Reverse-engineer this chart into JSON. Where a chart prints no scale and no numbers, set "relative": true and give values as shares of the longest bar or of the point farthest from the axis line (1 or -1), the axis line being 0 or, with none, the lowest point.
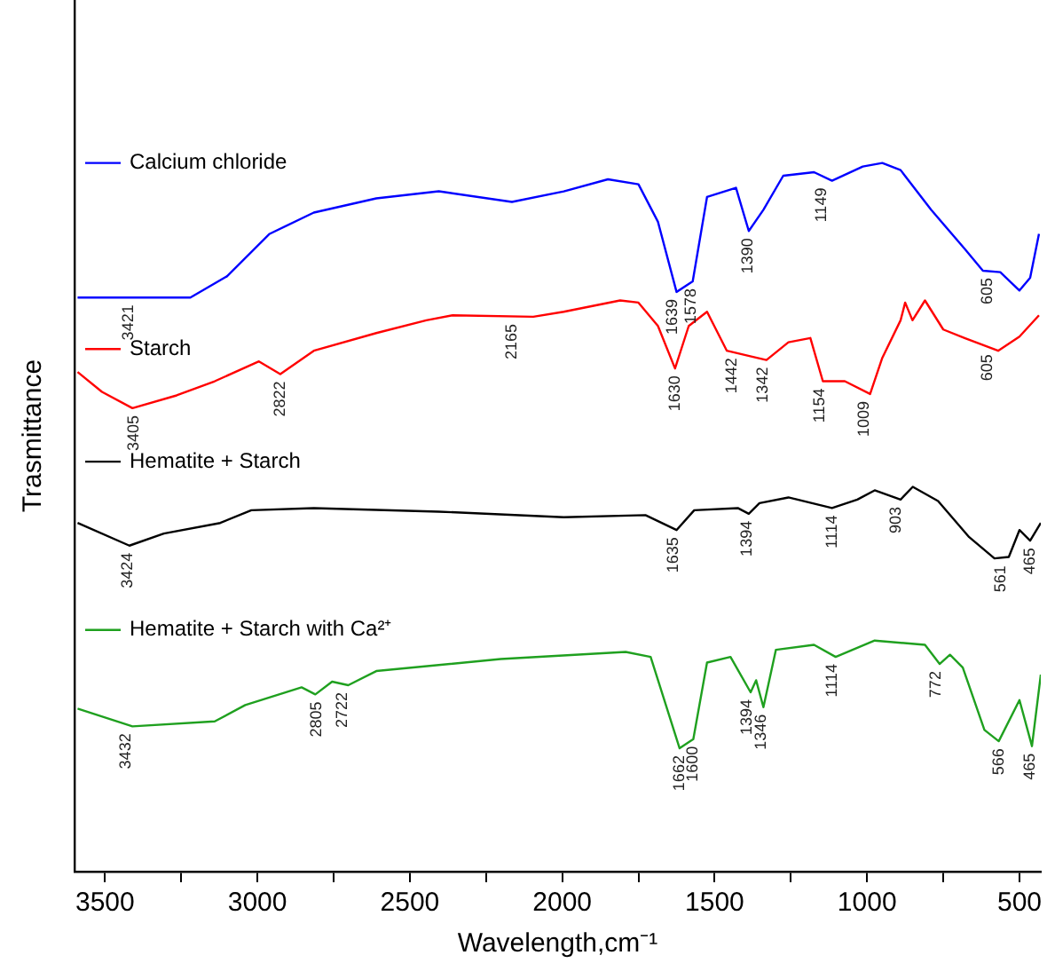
{
  "chart_data": {
    "type": "line",
    "relative": true,
    "xlabel": "Wavelength,cm⁻¹",
    "ylabel": "Trasmittance",
    "tick_labels": "x",
    "legend": "left",
    "grid": false,
    "marker": "none",
    "line_style": "solid",
    "xlim": [
      3600,
      430
    ],
    "xticks": [
      3500,
      {
        "value": 3250,
        "label": null
      },
      3000,
      {
        "value": 2750,
        "label": null
      },
      2500,
      {
        "value": 2250,
        "label": null
      },
      2000,
      {
        "value": 1750,
        "label": null
      },
      1500,
      {
        "value": 1250,
        "label": null
      },
      1000,
      {
        "value": 750,
        "label": null
      },
      500
    ],
    "series": [
      {
        "name": "Calcium chloride",
        "color": "#0000ff",
        "x": [
          3590,
          3430,
          3220,
          3100,
          2960,
          2815,
          2610,
          2405,
          2165,
          1995,
          1850,
          1750,
          1686,
          1625,
          1572,
          1525,
          1430,
          1388,
          1340,
          1275,
          1174,
          1115,
          1014,
          950,
          890,
          790,
          680,
          620,
          563,
          500,
          465,
          436
        ],
        "values": [
          0.81,
          0.81,
          0.81,
          0.84,
          0.9,
          0.93,
          0.95,
          0.96,
          0.945,
          0.96,
          0.977,
          0.97,
          0.917,
          0.818,
          0.833,
          0.952,
          0.965,
          0.904,
          0.934,
          0.982,
          0.987,
          0.975,
          0.995,
          1,
          0.99,
          0.934,
          0.879,
          0.848,
          0.846,
          0.82,
          0.838,
          0.9
        ]
      },
      {
        "name": "Starch",
        "color": "#ff0000",
        "x": [
          3590,
          3510,
          3410,
          3265,
          3140,
          2995,
          2925,
          2815,
          2610,
          2446,
          2360,
          2095,
          1995,
          1810,
          1750,
          1686,
          1630,
          1585,
          1525,
          1460,
          1380,
          1330,
          1258,
          1186,
          1145,
          1073,
          990,
          950,
          890,
          875,
          851,
          810,
          750,
          680,
          570,
          500,
          436
        ],
        "values": [
          0.705,
          0.677,
          0.654,
          0.672,
          0.692,
          0.72,
          0.702,
          0.735,
          0.76,
          0.778,
          0.785,
          0.783,
          0.79,
          0.806,
          0.803,
          0.77,
          0.71,
          0.77,
          0.79,
          0.735,
          0.727,
          0.722,
          0.747,
          0.753,
          0.692,
          0.692,
          0.674,
          0.725,
          0.778,
          0.803,
          0.778,
          0.806,
          0.765,
          0.753,
          0.735,
          0.755,
          0.785
        ]
      },
      {
        "name": "Hematite + Starch",
        "color": "#000000",
        "x": [
          3590,
          3420,
          3307,
          3122,
          3020,
          2815,
          2405,
          1995,
          1727,
          1625,
          1567,
          1424,
          1388,
          1353,
          1258,
          1115,
          1032,
          975,
          890,
          850,
          767,
          665,
          582,
          535,
          500,
          465,
          430
        ],
        "values": [
          0.492,
          0.46,
          0.477,
          0.492,
          0.51,
          0.513,
          0.508,
          0.5,
          0.503,
          0.482,
          0.51,
          0.513,
          0.505,
          0.52,
          0.528,
          0.513,
          0.525,
          0.538,
          0.525,
          0.543,
          0.523,
          0.472,
          0.442,
          0.444,
          0.482,
          0.467,
          0.492
        ]
      },
      {
        "name": "Hematite + Starch with Ca²⁺",
        "color": "#1fa01f",
        "x": [
          3590,
          3410,
          3140,
          3040,
          2855,
          2810,
          2755,
          2702,
          2610,
          2202,
          1792,
          1710,
          1615,
          1570,
          1525,
          1448,
          1382,
          1364,
          1340,
          1299,
          1174,
          1103,
          975,
          810,
          762,
          728,
          686,
          615,
          568,
          500,
          459,
          430
        ],
        "values": [
          0.23,
          0.205,
          0.212,
          0.235,
          0.26,
          0.25,
          0.268,
          0.263,
          0.283,
          0.3,
          0.31,
          0.303,
          0.174,
          0.187,
          0.295,
          0.303,
          0.253,
          0.27,
          0.232,
          0.313,
          0.32,
          0.303,
          0.326,
          0.32,
          0.293,
          0.306,
          0.288,
          0.2,
          0.184,
          0.242,
          0.177,
          0.278
        ]
      }
    ],
    "annotations": [
      {
        "text": "3421",
        "x": 3421,
        "y": 0.81
      },
      {
        "text": "1639",
        "x": 1639,
        "y": 0.818
      },
      {
        "text": "1578",
        "x": 1578,
        "y": 0.833
      },
      {
        "text": "1390",
        "x": 1390,
        "y": 0.904
      },
      {
        "text": "1149",
        "x": 1149,
        "y": 0.975
      },
      {
        "text": "605",
        "x": 605,
        "y": 0.848
      },
      {
        "text": "2165",
        "x": 2165,
        "y": 0.783
      },
      {
        "text": "3405",
        "x": 3405,
        "y": 0.654
      },
      {
        "text": "2822",
        "x": 2925,
        "y": 0.702
      },
      {
        "text": "1630",
        "x": 1630,
        "y": 0.71
      },
      {
        "text": "1442",
        "x": 1442,
        "y": 0.735
      },
      {
        "text": "1342",
        "x": 1342,
        "y": 0.722
      },
      {
        "text": "1154",
        "x": 1154,
        "y": 0.692
      },
      {
        "text": "1009",
        "x": 1009,
        "y": 0.674
      },
      {
        "text": "605",
        "x": 605,
        "y": 0.74
      },
      {
        "text": "3424",
        "x": 3424,
        "y": 0.46
      },
      {
        "text": "1635",
        "x": 1635,
        "y": 0.482
      },
      {
        "text": "1394",
        "x": 1394,
        "y": 0.505
      },
      {
        "text": "1114",
        "x": 1114,
        "y": 0.513
      },
      {
        "text": "903",
        "x": 903,
        "y": 0.525
      },
      {
        "text": "561",
        "x": 561,
        "y": 0.442
      },
      {
        "text": "465",
        "x": 465,
        "y": 0.467
      },
      {
        "text": "3432",
        "x": 3432,
        "y": 0.205
      },
      {
        "text": "2805",
        "x": 2805,
        "y": 0.25
      },
      {
        "text": "2722",
        "x": 2722,
        "y": 0.263
      },
      {
        "text": "1662",
        "x": 1615,
        "y": 0.174
      },
      {
        "text": "1600",
        "x": 1570,
        "y": 0.187
      },
      {
        "text": "1394",
        "x": 1394,
        "y": 0.253
      },
      {
        "text": "1346",
        "x": 1346,
        "y": 0.232
      },
      {
        "text": "1114",
        "x": 1114,
        "y": 0.303
      },
      {
        "text": "772",
        "x": 772,
        "y": 0.293
      },
      {
        "text": "566",
        "x": 566,
        "y": 0.184
      },
      {
        "text": "465",
        "x": 465,
        "y": 0.177
      }
    ]
  }
}
